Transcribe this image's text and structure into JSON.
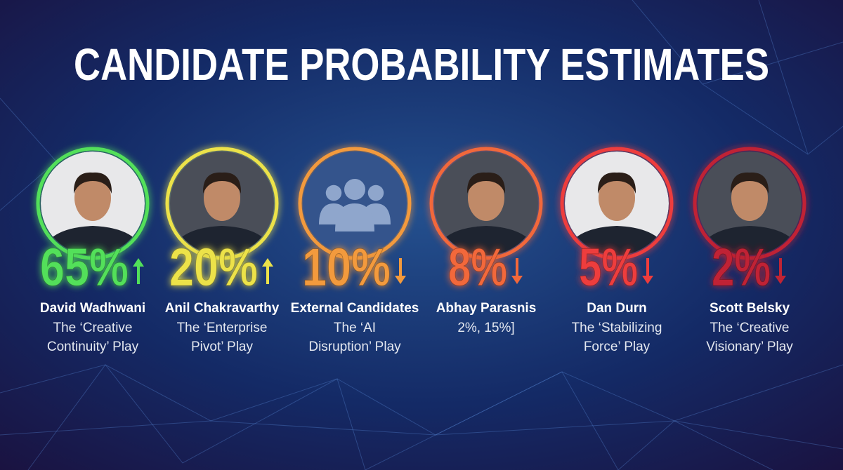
{
  "title": "CANDIDATE PROBABILITY ESTIMATES",
  "candidates": [
    {
      "name": "David Wadhwani",
      "subtitle": [
        "The ‘Creative",
        "Continuity’ Play"
      ],
      "probability": "65%",
      "trend": "up",
      "avatar": "person",
      "color": "#52e05a"
    },
    {
      "name": "Anil Chakravarthy",
      "subtitle": [
        "The ‘Enterprise",
        "Pivot’ Play"
      ],
      "probability": "20%",
      "trend": "up",
      "avatar": "person",
      "color": "#ece24a"
    },
    {
      "name": "External Candidates",
      "subtitle": [
        "The ‘AI",
        "Disruption’ Play"
      ],
      "probability": "10%",
      "trend": "down",
      "avatar": "group",
      "color": "#f39a3c"
    },
    {
      "name": "Abhay Parasnis",
      "subtitle": [
        "2%, 15%]"
      ],
      "probability": "8%",
      "trend": "down",
      "avatar": "person",
      "color": "#f2683a"
    },
    {
      "name": "Dan Durn",
      "subtitle": [
        "The ‘Stabilizing",
        "Force’ Play"
      ],
      "probability": "5%",
      "trend": "down",
      "avatar": "person",
      "color": "#ee3c3c"
    },
    {
      "name": "Scott Belsky",
      "subtitle": [
        "The ‘Creative",
        "Visionary’ Play"
      ],
      "probability": "2%",
      "trend": "down",
      "avatar": "person",
      "color": "#c02434"
    }
  ]
}
